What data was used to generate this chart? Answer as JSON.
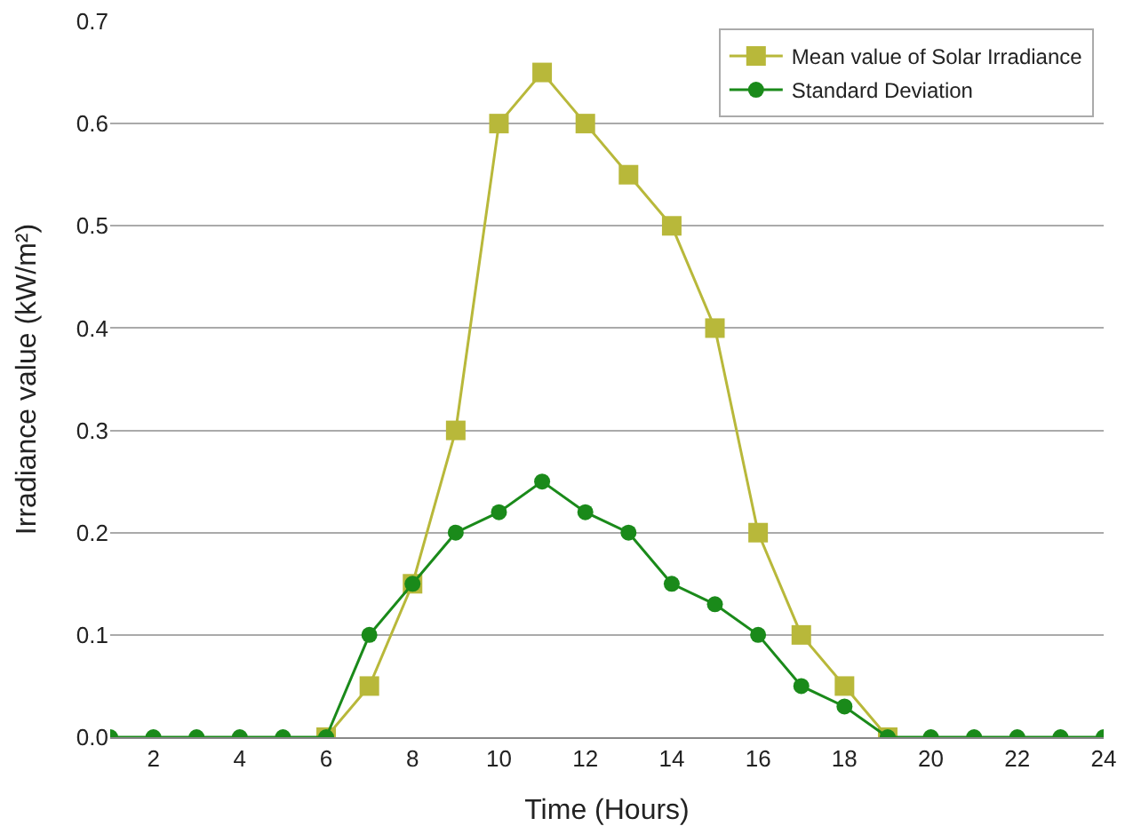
{
  "chart_data": {
    "type": "line",
    "xlabel": "Time (Hours)",
    "ylabel": "Irradiance value (kW/m²)",
    "x": [
      1,
      2,
      3,
      4,
      5,
      6,
      7,
      8,
      9,
      10,
      11,
      12,
      13,
      14,
      15,
      16,
      17,
      18,
      19,
      20,
      21,
      22,
      23,
      24
    ],
    "series": [
      {
        "name": "Mean value of Solar Irradiance",
        "color": "#b8b83a",
        "marker": "square",
        "values": [
          null,
          null,
          null,
          null,
          null,
          0,
          0.05,
          0.15,
          0.3,
          0.6,
          0.65,
          0.6,
          0.55,
          0.5,
          0.4,
          0.2,
          0.1,
          0.05,
          0,
          null,
          null,
          null,
          null,
          null
        ]
      },
      {
        "name": "Standard Deviation",
        "color": "#1a8a1a",
        "marker": "circle",
        "values": [
          0,
          0,
          0,
          0,
          0,
          0,
          0.1,
          0.15,
          0.2,
          0.22,
          0.25,
          0.22,
          0.2,
          0.15,
          0.13,
          0.1,
          0.05,
          0.03,
          0,
          0,
          0,
          0,
          0,
          0
        ]
      }
    ],
    "xlim": [
      1,
      24
    ],
    "xticks": [
      2,
      4,
      6,
      8,
      10,
      12,
      14,
      16,
      18,
      20,
      22,
      24
    ],
    "ylim": [
      0,
      0.7
    ],
    "yticks": [
      {
        "value": 0,
        "label": "0.0"
      },
      {
        "value": 0.1,
        "label": "0.1"
      },
      {
        "value": 0.2,
        "label": "0.2"
      },
      {
        "value": 0.3,
        "label": "0.3"
      },
      {
        "value": 0.4,
        "label": "0.4"
      },
      {
        "value": 0.5,
        "label": "0.5"
      },
      {
        "value": 0.6,
        "label": "0.6"
      },
      {
        "value": 0.7,
        "label": "0.7"
      }
    ],
    "grid": "y",
    "legend": "top right"
  }
}
